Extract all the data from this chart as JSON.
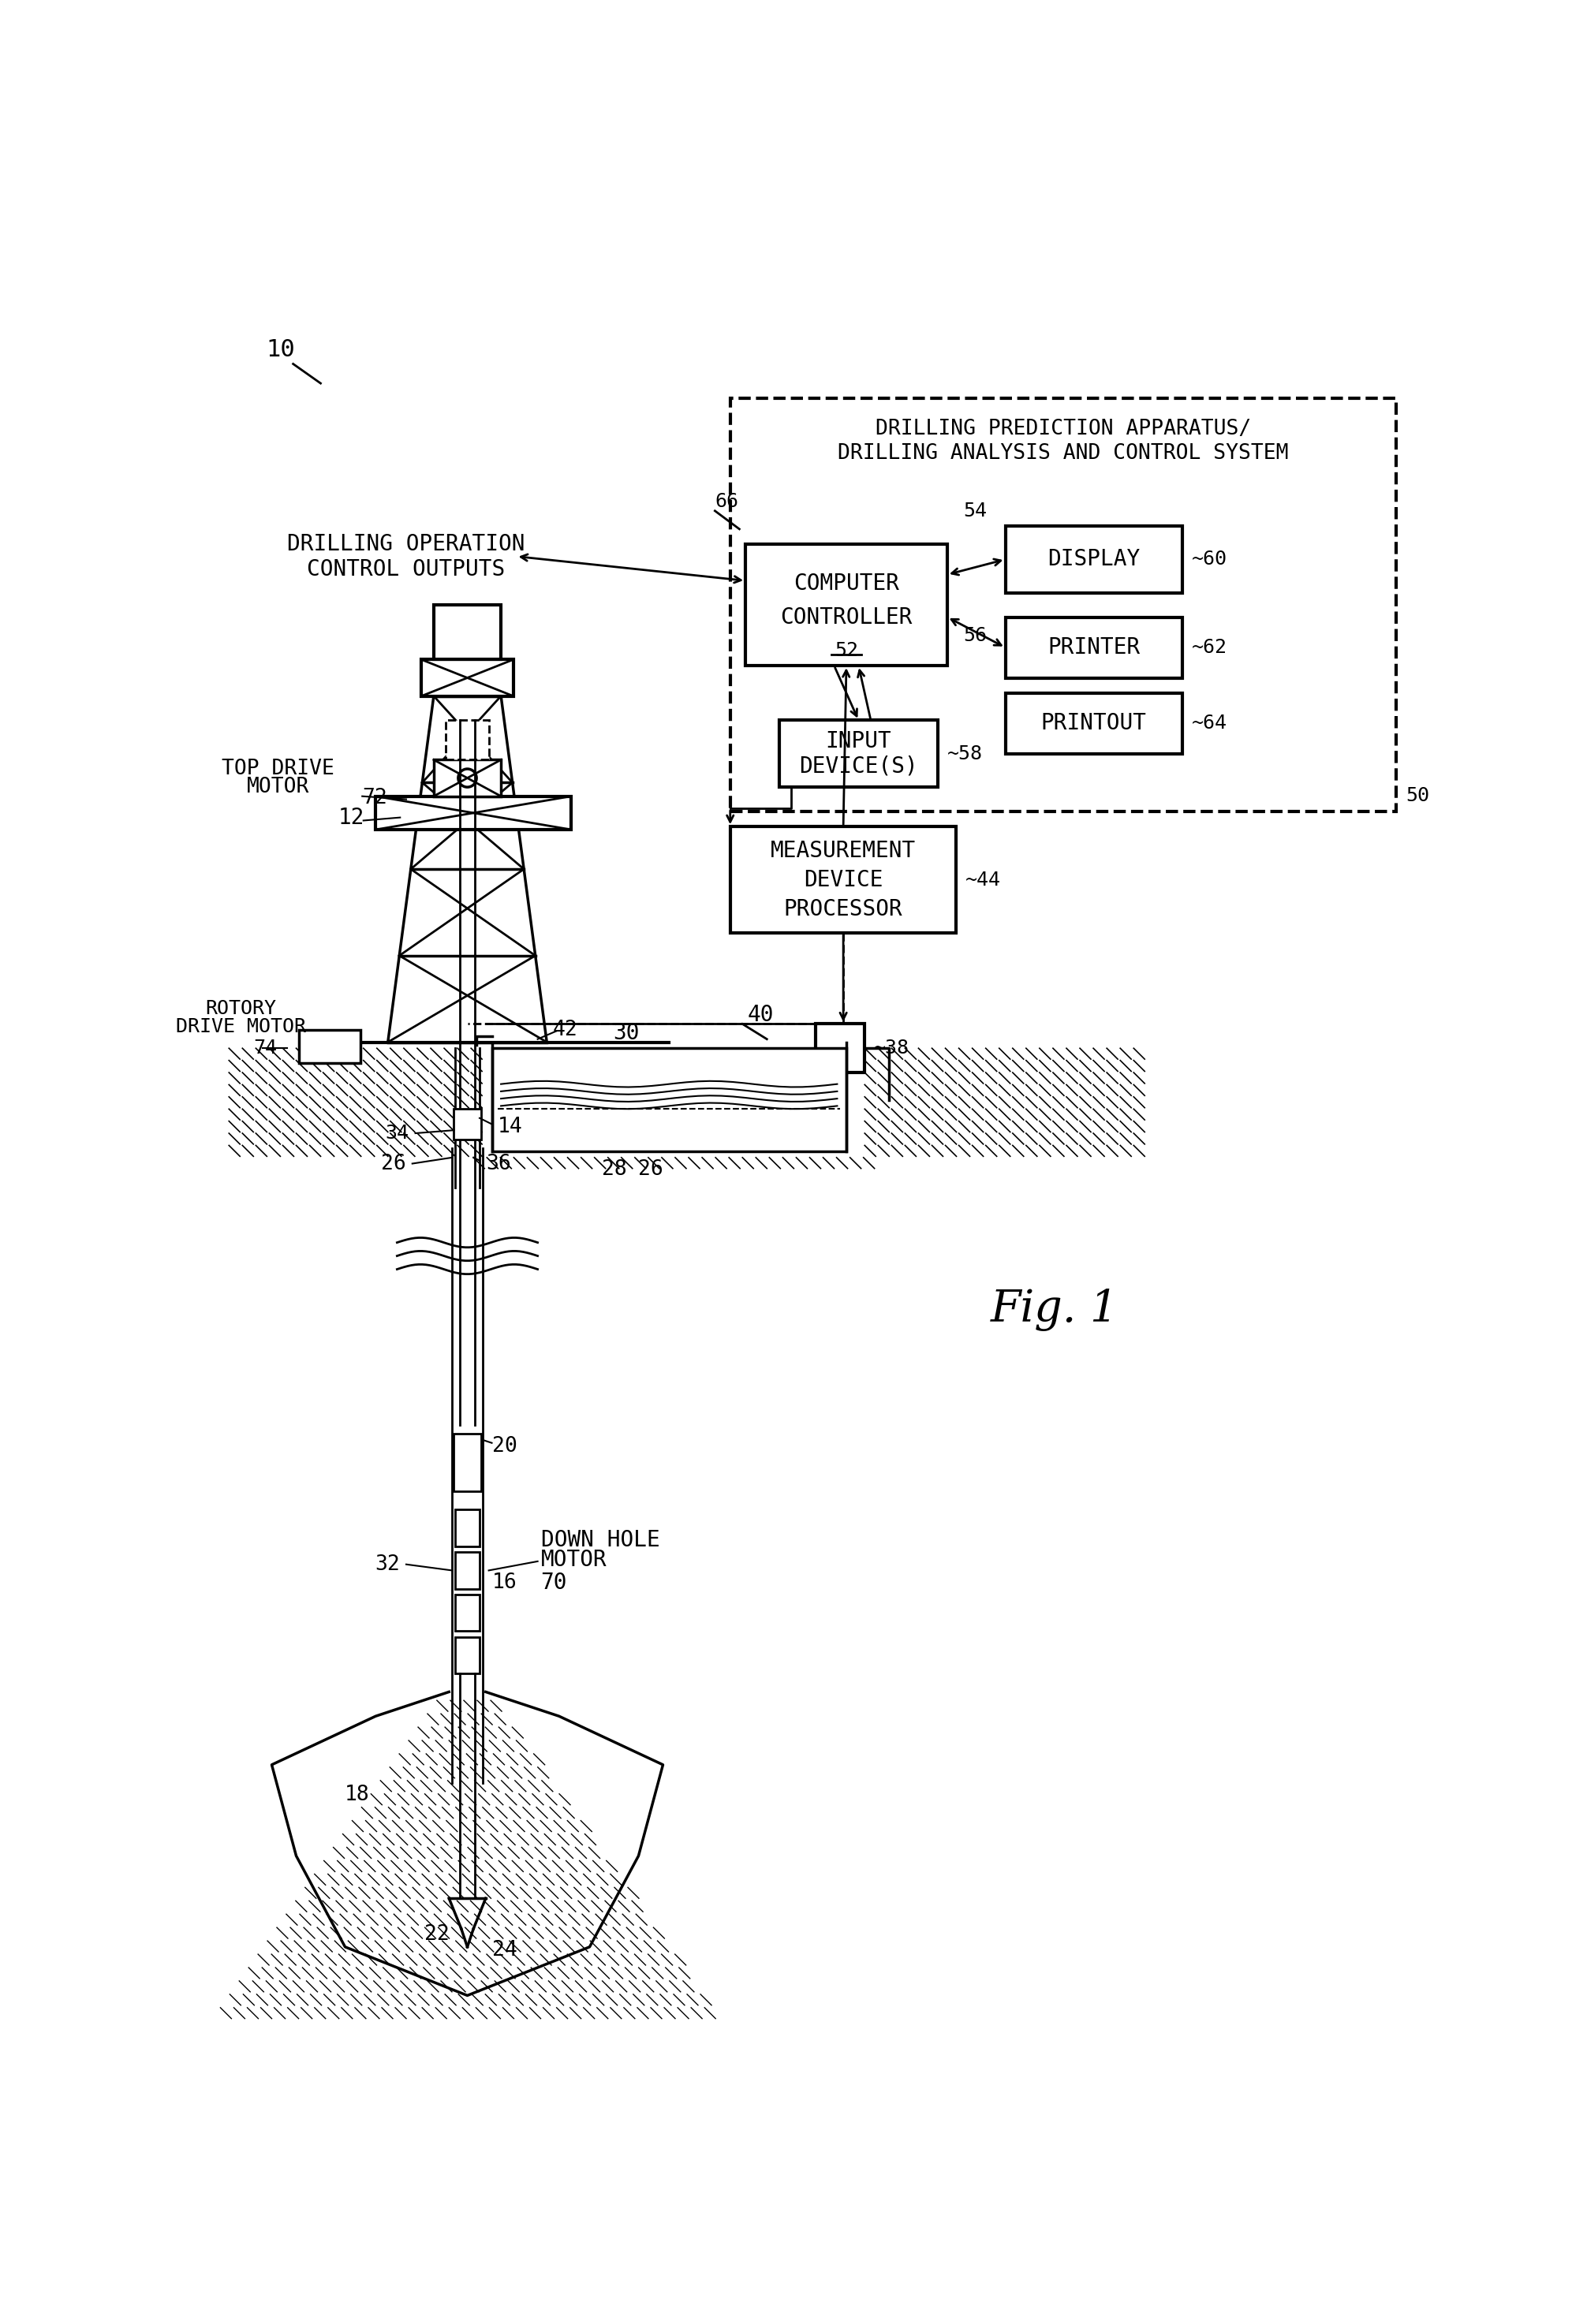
{
  "bg_color": "#ffffff",
  "fig_label": "10",
  "fig_note": "Fig. 1",
  "system_title_1": "DRILLING PREDICTION APPARATUS/",
  "system_title_2": "DRILLING ANALYSIS AND CONTROL SYSTEM",
  "system_ref": "50",
  "computer_label_1": "COMPUTER",
  "computer_label_2": "CONTROLLER",
  "computer_ref": "52",
  "display_label": "DISPLAY",
  "display_ref": "60",
  "printer_label": "PRINTER",
  "printer_ref": "62",
  "printout_label": "PRINTOUT",
  "printout_ref": "64",
  "input_label_1": "INPUT",
  "input_label_2": "DEVICE(S)",
  "input_ref": "58",
  "meas_label_1": "MEASUREMENT",
  "meas_label_2": "DEVICE",
  "meas_label_3": "PROCESSOR",
  "meas_ref": "44",
  "drill_op_1": "DRILLING OPERATION",
  "drill_op_2": "CONTROL OUTPUTS",
  "drill_op_ref": "66",
  "rig_ref": "12",
  "top_drive_1": "TOP DRIVE",
  "top_drive_2": "MOTOR",
  "top_drive_ref": "72",
  "rotory_1": "ROTORY",
  "rotory_2": "DRIVE MOTOR",
  "rotory_ref": "74",
  "mudline_ref": "30",
  "flow_ref": "40",
  "pump_ref": "38",
  "kelly_ref": "42",
  "drill_pipe_ref": "14",
  "standpipe_ref": "36",
  "outer_casing_ref": "26",
  "sensor_ref": "34",
  "mwd_ref": "20",
  "collar_ref": "32",
  "borehole_ref": "16",
  "downhole_1": "DOWN HOLE",
  "downhole_2": "MOTOR",
  "downhole_ref": "70",
  "formation_ref": "18",
  "bit_ref": "22",
  "bit2_ref": "24",
  "mud_return_ref": "28",
  "mud_pit_ref": "26",
  "arrow54": "54",
  "arrow56": "56"
}
